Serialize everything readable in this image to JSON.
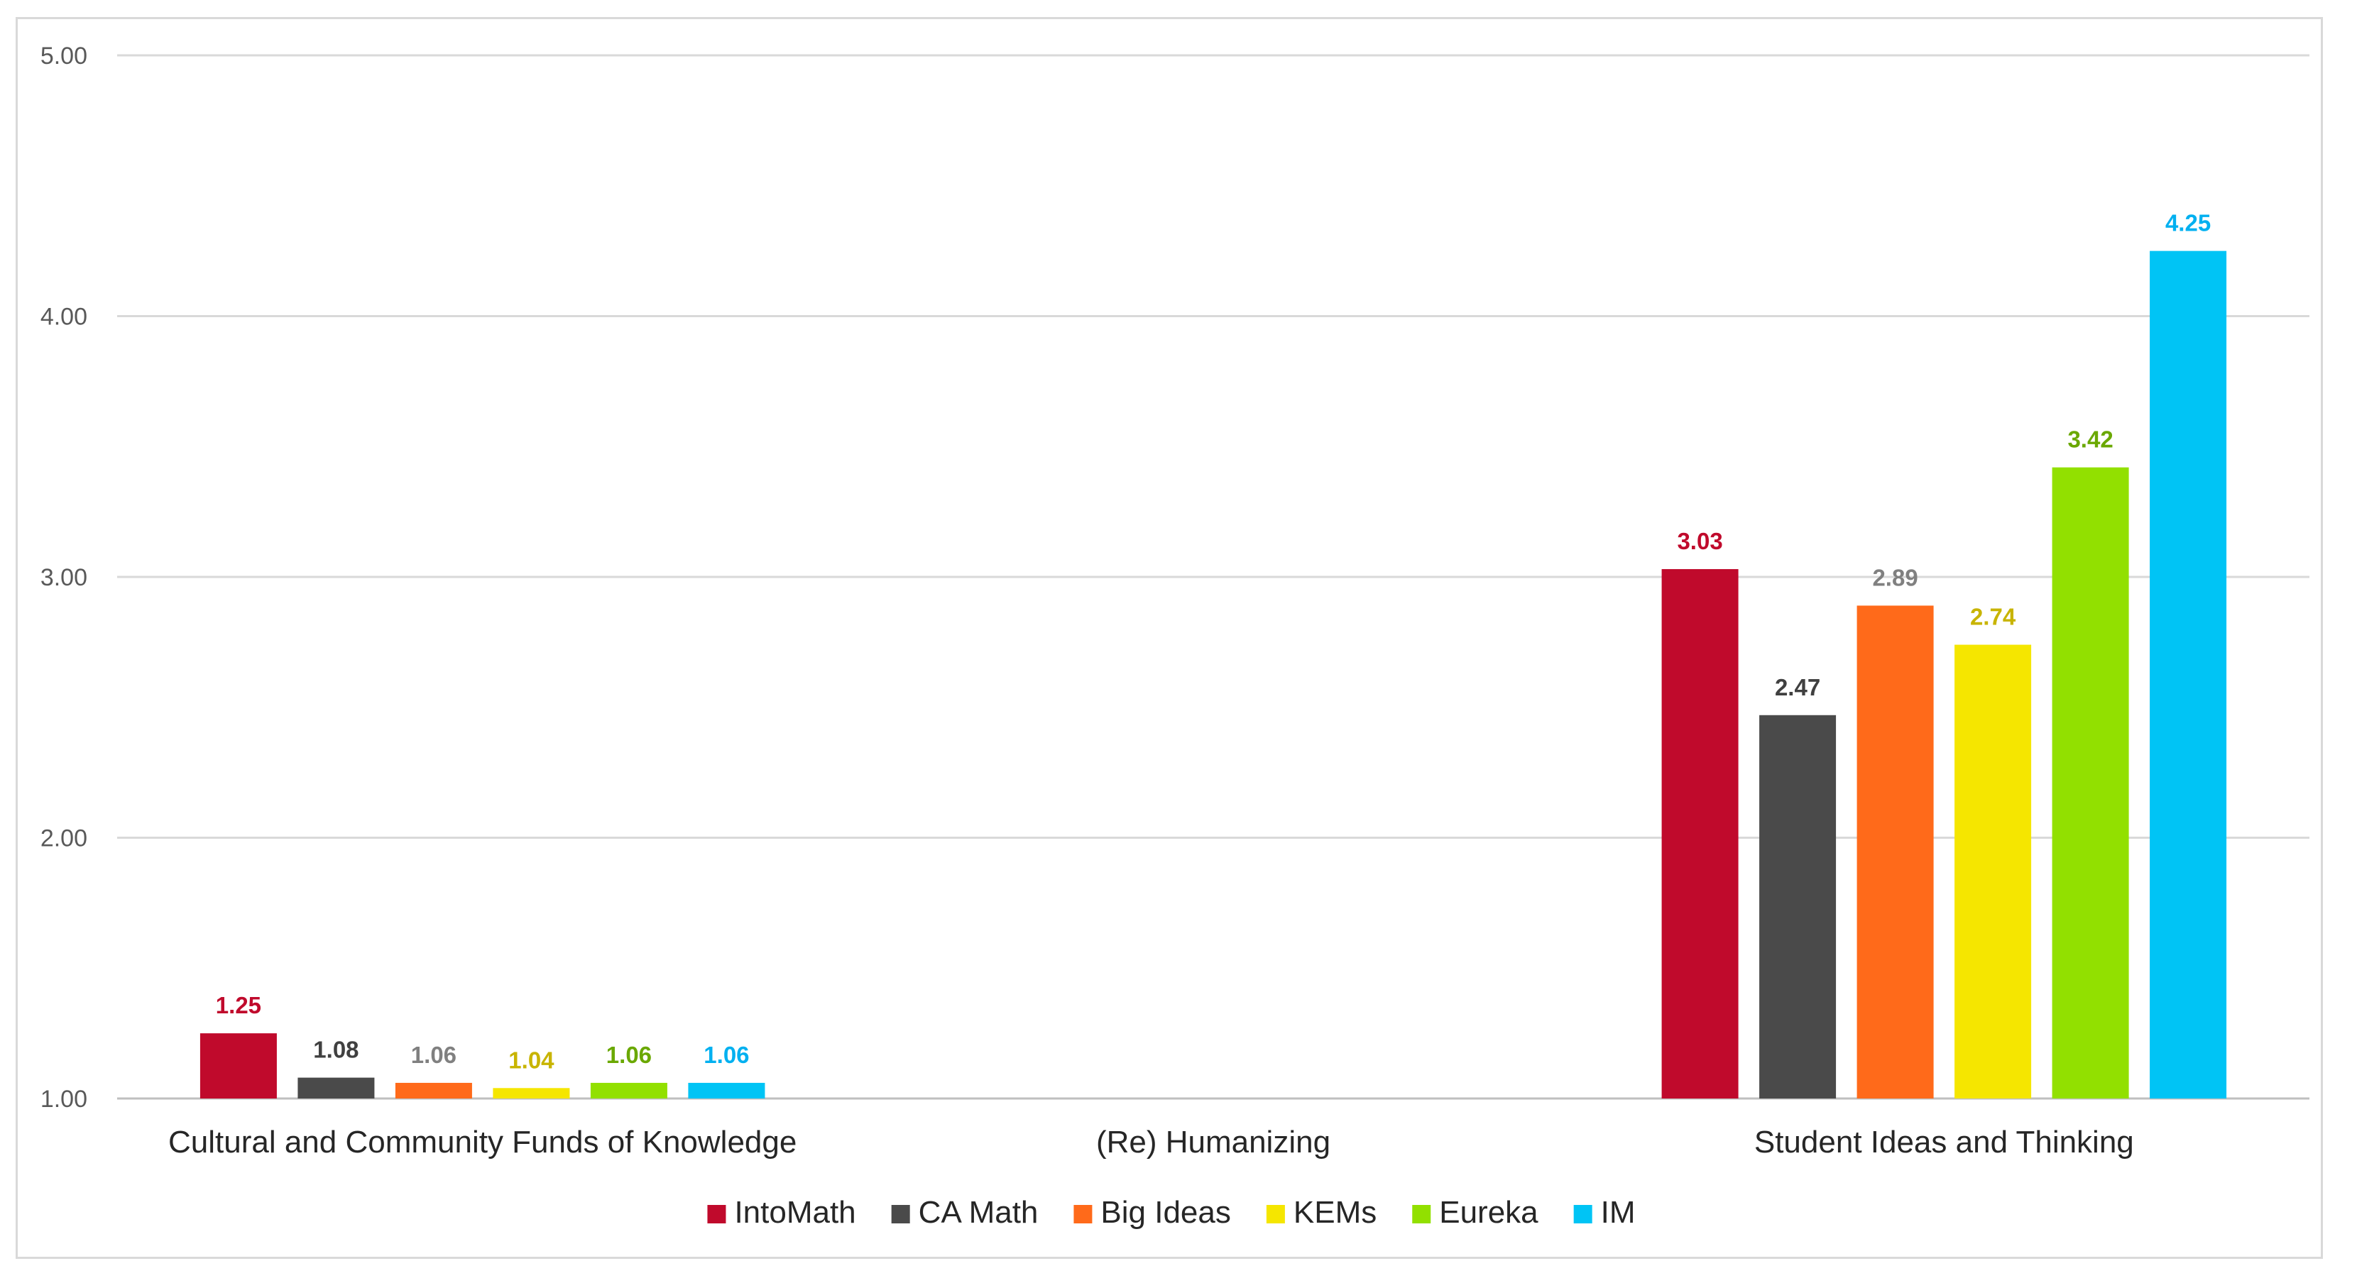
{
  "chart_data": {
    "type": "bar",
    "categories": [
      "Cultural and Community Funds of Knowledge",
      "(Re) Humanizing",
      "Student Ideas and Thinking"
    ],
    "series": [
      {
        "name": "IntoMath",
        "color": "#c00a2c",
        "label_color": "#c00a2c",
        "values": [
          1.25,
          null,
          3.03
        ]
      },
      {
        "name": "CA Math",
        "color": "#4a4a4a",
        "label_color": "#404040",
        "values": [
          1.08,
          null,
          2.47
        ]
      },
      {
        "name": "Big Ideas",
        "color": "#ff6a1a",
        "label_color": "#808080",
        "values": [
          1.06,
          null,
          2.89
        ]
      },
      {
        "name": "KEMs",
        "color": "#f5e600",
        "label_color": "#c8b400",
        "values": [
          1.04,
          null,
          2.74
        ]
      },
      {
        "name": "Eureka",
        "color": "#92e000",
        "label_color": "#6aa800",
        "values": [
          1.06,
          null,
          3.42
        ]
      },
      {
        "name": "IM",
        "color": "#00c4f5",
        "label_color": "#00b0f0",
        "values": [
          1.06,
          null,
          4.25
        ]
      }
    ],
    "yticks": [
      "1.00",
      "2.00",
      "3.00",
      "4.00",
      "5.00"
    ],
    "ylim": [
      1,
      5
    ],
    "grid": true,
    "legend_position": "bottom",
    "title": "",
    "xlabel": "",
    "ylabel": ""
  }
}
